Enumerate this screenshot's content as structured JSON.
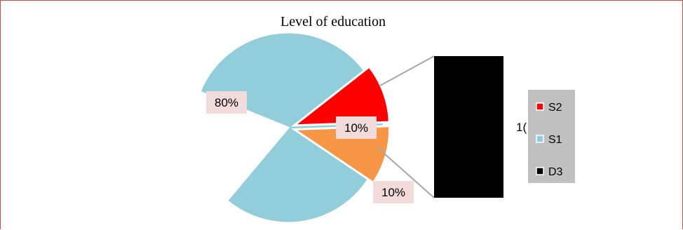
{
  "chart_data": {
    "type": "pie",
    "title": "Level of education",
    "slices": [
      {
        "label": "S1",
        "value": 80,
        "display": "80%",
        "color": "#92cddc"
      },
      {
        "label": "S2",
        "value": 10,
        "display": "10%",
        "color": "#ff0000"
      },
      {
        "label": "D3",
        "value": 10,
        "display": "10%",
        "color": "#f79646"
      }
    ],
    "secondary_bar": {
      "color": "#000000",
      "partial_label": "1("
    },
    "legend": {
      "placement": "right",
      "entries": [
        {
          "label": "S2",
          "color": "#ff0000"
        },
        {
          "label": "S1",
          "color": "#92cddc"
        },
        {
          "label": "D3",
          "color": "#000000"
        }
      ]
    }
  }
}
